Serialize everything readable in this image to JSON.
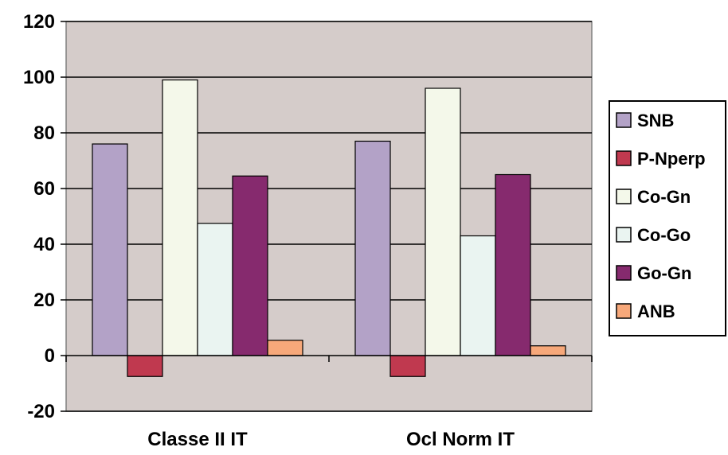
{
  "chart_data": {
    "type": "bar",
    "categories": [
      "Classe II IT",
      "Ocl Norm IT"
    ],
    "series": [
      {
        "name": "SNB",
        "values": [
          76,
          77
        ],
        "color": "#B3A2C7"
      },
      {
        "name": "P-Nperp",
        "values": [
          -7.5,
          -7.5
        ],
        "color": "#C0394F"
      },
      {
        "name": "Co-Gn",
        "values": [
          99,
          96
        ],
        "color": "#F4F8EA"
      },
      {
        "name": "Co-Go",
        "values": [
          47.5,
          43
        ],
        "color": "#EAF4F1"
      },
      {
        "name": "Go-Gn",
        "values": [
          64.5,
          65
        ],
        "color": "#862A6E"
      },
      {
        "name": "ANB",
        "values": [
          5.5,
          3.5
        ],
        "color": "#F7A87A"
      }
    ],
    "ylim": [
      -20,
      120
    ],
    "yticks": [
      -20,
      0,
      20,
      40,
      60,
      80,
      100,
      120
    ],
    "grid": true,
    "legend_position": "right",
    "plot_background": "#D5CCCA"
  }
}
